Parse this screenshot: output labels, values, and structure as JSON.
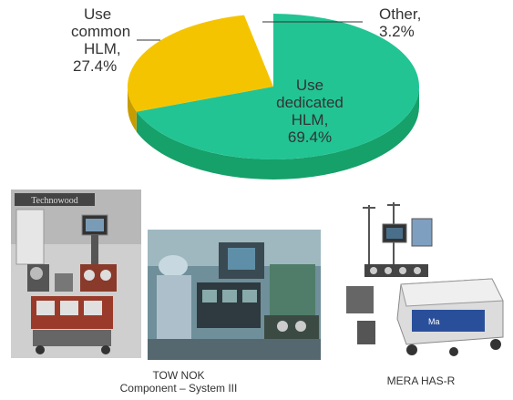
{
  "chart_data": {
    "type": "pie",
    "title": "",
    "slices": [
      {
        "label": "Use dedicated HLM,",
        "label_lines": [
          "Use",
          "dedicated",
          "HLM,"
        ],
        "value": 69.4,
        "value_text": "69.4%",
        "color": "#22c493",
        "side_color": "#16a06a"
      },
      {
        "label": "Use common HLM,",
        "label_lines": [
          "Use",
          "common",
          "HLM,"
        ],
        "value": 27.4,
        "value_text": "27.4%",
        "color": "#f5c400",
        "side_color": "#c79c00"
      },
      {
        "label": "Other,",
        "label_lines": [
          "Other,"
        ],
        "value": 3.2,
        "value_text": "3.2%",
        "color": "#ffffff",
        "side_color": "#e8e8e8"
      }
    ],
    "style": "3d-tilted",
    "legend": "none"
  },
  "photos": [
    {
      "caption_lines": [
        "TOW NOK",
        "Component – System III"
      ],
      "sign_text": "Technowood"
    },
    {
      "caption_lines": []
    },
    {
      "caption_lines": [
        "MERA  HAS-R"
      ]
    }
  ]
}
